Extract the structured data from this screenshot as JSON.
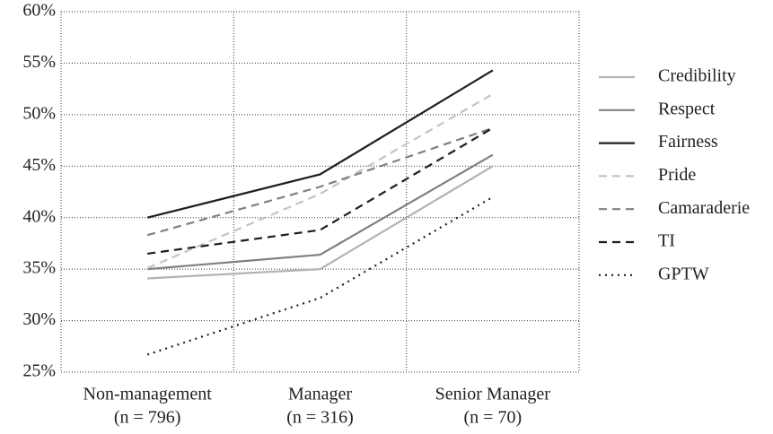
{
  "chart_data": {
    "type": "line",
    "categories": [
      [
        "Non-management",
        "(n = 796)"
      ],
      [
        "Manager",
        "(n = 316)"
      ],
      [
        "Senior Manager",
        "(n = 70)"
      ]
    ],
    "series": [
      {
        "name": "Credibility",
        "color": "#b3b3b3",
        "dash": "solid",
        "values": [
          34.1,
          35.0,
          45.0
        ]
      },
      {
        "name": "Respect",
        "color": "#808080",
        "dash": "solid",
        "values": [
          35.0,
          36.4,
          46.1
        ]
      },
      {
        "name": "Fairness",
        "color": "#1e1e1e",
        "dash": "solid",
        "values": [
          40.0,
          44.2,
          54.3
        ]
      },
      {
        "name": "Pride",
        "color": "#c4c4c4",
        "dash": "dashed",
        "values": [
          35.1,
          42.3,
          52.0
        ]
      },
      {
        "name": "Camaraderie",
        "color": "#808080",
        "dash": "dashed",
        "values": [
          38.3,
          43.0,
          48.7
        ]
      },
      {
        "name": "TI",
        "color": "#1e1e1e",
        "dash": "dashed",
        "values": [
          36.5,
          38.8,
          48.7
        ]
      },
      {
        "name": "GPTW",
        "color": "#1e1e1e",
        "dash": "dotted",
        "values": [
          26.7,
          32.2,
          42.0
        ]
      }
    ],
    "ylim": [
      25,
      60
    ],
    "yticks": [
      {
        "value": 25,
        "label": "25%"
      },
      {
        "value": 30,
        "label": "30%"
      },
      {
        "value": 35,
        "label": "35%"
      },
      {
        "value": 40,
        "label": "40%"
      },
      {
        "value": 45,
        "label": "45%"
      },
      {
        "value": 50,
        "label": "50%"
      },
      {
        "value": 55,
        "label": "55%"
      },
      {
        "value": 60,
        "label": "60%"
      }
    ],
    "grid": true,
    "legend": "right"
  }
}
